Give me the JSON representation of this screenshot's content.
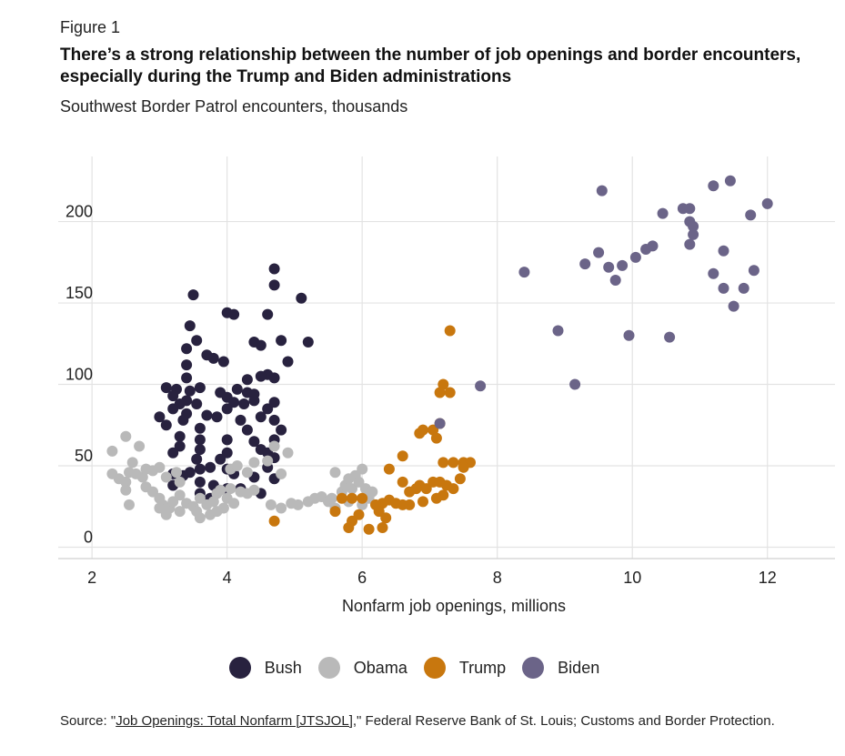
{
  "figure_label": "Figure 1",
  "title": "There’s a strong relationship between the number of job openings and border encounters, especially during the Trump and Biden administrations",
  "subtitle": "Southwest Border Patrol encounters, thousands",
  "source": {
    "prefix": "Source: \"",
    "link_text": "Job Openings: Total Nonfarm [JTSJOL]",
    "suffix": ",\" Federal Reserve Bank of St. Louis; Customs and Border Protection."
  },
  "chart_data": {
    "type": "scatter",
    "xlabel": "Nonfarm job openings, millions",
    "ylabel": "",
    "xlim": [
      1.5,
      13
    ],
    "ylim": [
      -7,
      240
    ],
    "x_ticks": [
      2,
      4,
      6,
      8,
      10,
      12
    ],
    "y_ticks": [
      0,
      50,
      100,
      150,
      200
    ],
    "grid": true,
    "legend_position": "bottom",
    "series": [
      {
        "name": "Bush",
        "color": "#28223f",
        "points": [
          [
            3.5,
            155
          ],
          [
            4.7,
            171
          ],
          [
            4.7,
            161
          ],
          [
            5.1,
            153
          ],
          [
            4.1,
            143
          ],
          [
            4,
            144
          ],
          [
            4.6,
            143
          ],
          [
            3.45,
            136
          ],
          [
            3.55,
            127
          ],
          [
            3.4,
            122
          ],
          [
            4.4,
            126
          ],
          [
            4.5,
            124
          ],
          [
            4.8,
            127
          ],
          [
            5.2,
            126
          ],
          [
            3.7,
            118
          ],
          [
            3.8,
            116
          ],
          [
            3.95,
            114
          ],
          [
            3.4,
            112
          ],
          [
            4.9,
            114
          ],
          [
            4.6,
            106
          ],
          [
            3.4,
            104
          ],
          [
            4.5,
            105
          ],
          [
            4.3,
            103
          ],
          [
            4.7,
            104
          ],
          [
            3.1,
            98
          ],
          [
            3.25,
            97
          ],
          [
            3.45,
            96
          ],
          [
            3.6,
            98
          ],
          [
            3.9,
            95
          ],
          [
            4.15,
            97
          ],
          [
            4.3,
            95
          ],
          [
            4.4,
            94
          ],
          [
            4,
            92
          ],
          [
            3.2,
            93
          ],
          [
            3.4,
            90
          ],
          [
            3.3,
            88
          ],
          [
            3.55,
            88
          ],
          [
            4.1,
            89
          ],
          [
            4.25,
            88
          ],
          [
            4.4,
            90
          ],
          [
            4.6,
            85
          ],
          [
            3.2,
            85
          ],
          [
            4.7,
            89
          ],
          [
            3.0,
            80
          ],
          [
            3.4,
            82
          ],
          [
            3.7,
            81
          ],
          [
            3.85,
            80
          ],
          [
            4.0,
            85
          ],
          [
            4.2,
            78
          ],
          [
            4.5,
            80
          ],
          [
            4.7,
            78
          ],
          [
            3.1,
            75
          ],
          [
            3.35,
            78
          ],
          [
            3.6,
            73
          ],
          [
            4.3,
            72
          ],
          [
            4.8,
            72
          ],
          [
            3.3,
            68
          ],
          [
            3.6,
            66
          ],
          [
            4.0,
            66
          ],
          [
            4.4,
            65
          ],
          [
            4.7,
            66
          ],
          [
            3.3,
            62
          ],
          [
            3.2,
            58
          ],
          [
            3.6,
            60
          ],
          [
            4.0,
            58
          ],
          [
            4.5,
            60
          ],
          [
            4.6,
            58
          ],
          [
            4.7,
            55
          ],
          [
            3.55,
            54
          ],
          [
            3.9,
            54
          ],
          [
            3.75,
            49
          ],
          [
            3.6,
            48
          ],
          [
            3.45,
            46
          ],
          [
            3.35,
            44
          ],
          [
            3.2,
            45
          ],
          [
            4.0,
            48
          ],
          [
            4.6,
            49
          ],
          [
            4.1,
            45
          ],
          [
            4.4,
            43
          ],
          [
            3.2,
            38
          ],
          [
            3.6,
            40
          ],
          [
            3.8,
            38
          ],
          [
            4.0,
            36
          ],
          [
            4.2,
            36
          ],
          [
            3.6,
            33
          ],
          [
            4.5,
            33
          ],
          [
            4.7,
            42
          ],
          [
            3.75,
            30
          ]
        ]
      },
      {
        "name": "Obama",
        "color": "#b9b9b9",
        "points": [
          [
            2.3,
            45
          ],
          [
            2.4,
            42
          ],
          [
            2.5,
            40
          ],
          [
            2.55,
            46
          ],
          [
            2.65,
            45
          ],
          [
            2.75,
            43
          ],
          [
            2.8,
            48
          ],
          [
            2.9,
            47
          ],
          [
            3.0,
            49
          ],
          [
            3.1,
            43
          ],
          [
            3.25,
            46
          ],
          [
            3.3,
            40
          ],
          [
            2.3,
            59
          ],
          [
            2.5,
            68
          ],
          [
            2.7,
            62
          ],
          [
            2.6,
            52
          ],
          [
            2.8,
            37
          ],
          [
            2.9,
            34
          ],
          [
            3.0,
            30
          ],
          [
            3.05,
            26
          ],
          [
            3.15,
            24
          ],
          [
            3.2,
            28
          ],
          [
            3.3,
            32
          ],
          [
            3.4,
            27
          ],
          [
            3.5,
            25
          ],
          [
            3.55,
            22
          ],
          [
            3.6,
            30
          ],
          [
            3.7,
            26
          ],
          [
            3.75,
            20
          ],
          [
            3.8,
            28
          ],
          [
            3.85,
            33
          ],
          [
            3.9,
            35
          ],
          [
            3.95,
            24
          ],
          [
            4.0,
            30
          ],
          [
            4.05,
            36
          ],
          [
            4.1,
            27
          ],
          [
            4.2,
            34
          ],
          [
            4.3,
            33
          ],
          [
            4.4,
            35
          ],
          [
            4.05,
            48
          ],
          [
            4.15,
            50
          ],
          [
            4.3,
            46
          ],
          [
            4.4,
            52
          ],
          [
            4.6,
            53
          ],
          [
            4.7,
            62
          ],
          [
            4.9,
            58
          ],
          [
            4.8,
            45
          ],
          [
            2.5,
            35
          ],
          [
            2.55,
            26
          ],
          [
            3.0,
            24
          ],
          [
            3.1,
            20
          ],
          [
            3.3,
            22
          ],
          [
            3.6,
            18
          ],
          [
            3.85,
            22
          ],
          [
            4.65,
            26
          ],
          [
            4.8,
            24
          ],
          [
            4.95,
            27
          ],
          [
            5.05,
            26
          ],
          [
            5.2,
            28
          ],
          [
            5.3,
            30
          ],
          [
            5.4,
            31
          ],
          [
            5.5,
            28
          ],
          [
            5.55,
            30
          ],
          [
            5.6,
            46
          ],
          [
            5.7,
            34
          ],
          [
            5.75,
            38
          ],
          [
            5.8,
            42
          ],
          [
            5.85,
            36
          ],
          [
            5.9,
            44
          ],
          [
            5.95,
            40
          ],
          [
            6.0,
            48
          ],
          [
            6.05,
            36
          ],
          [
            6.1,
            30
          ],
          [
            6.15,
            34
          ],
          [
            6.0,
            26
          ],
          [
            5.8,
            28
          ],
          [
            5.6,
            24
          ]
        ]
      },
      {
        "name": "Trump",
        "color": "#c8770e",
        "points": [
          [
            7.3,
            133
          ],
          [
            7.2,
            100
          ],
          [
            7.3,
            95
          ],
          [
            7.15,
            95
          ],
          [
            6.85,
            70
          ],
          [
            6.9,
            72
          ],
          [
            7.05,
            72
          ],
          [
            7.1,
            67
          ],
          [
            7.15,
            76
          ],
          [
            6.6,
            56
          ],
          [
            6.4,
            48
          ],
          [
            7.2,
            52
          ],
          [
            7.35,
            52
          ],
          [
            7.5,
            52
          ],
          [
            7.6,
            52
          ],
          [
            7.5,
            49
          ],
          [
            6.6,
            40
          ],
          [
            6.85,
            38
          ],
          [
            6.95,
            36
          ],
          [
            7.05,
            40
          ],
          [
            7.15,
            40
          ],
          [
            7.25,
            38
          ],
          [
            7.35,
            36
          ],
          [
            7.45,
            42
          ],
          [
            6.8,
            36
          ],
          [
            6.7,
            34
          ],
          [
            7.2,
            32
          ],
          [
            6.4,
            29
          ],
          [
            6.3,
            27
          ],
          [
            6.5,
            27
          ],
          [
            6.6,
            26
          ],
          [
            6.7,
            26
          ],
          [
            6.9,
            28
          ],
          [
            7.1,
            30
          ],
          [
            6.2,
            26
          ],
          [
            6.25,
            22
          ],
          [
            6.35,
            18
          ],
          [
            6.0,
            30
          ],
          [
            5.85,
            30
          ],
          [
            5.7,
            30
          ],
          [
            5.6,
            22
          ],
          [
            5.85,
            16
          ],
          [
            5.95,
            20
          ],
          [
            5.8,
            12
          ],
          [
            6.1,
            11
          ],
          [
            6.3,
            12
          ],
          [
            4.7,
            16
          ]
        ]
      },
      {
        "name": "Biden",
        "color": "#6b6488",
        "points": [
          [
            7.75,
            99
          ],
          [
            7.15,
            76
          ],
          [
            8.4,
            169
          ],
          [
            8.9,
            133
          ],
          [
            9.15,
            100
          ],
          [
            9.3,
            174
          ],
          [
            9.5,
            181
          ],
          [
            9.55,
            219
          ],
          [
            9.65,
            172
          ],
          [
            9.75,
            164
          ],
          [
            9.85,
            173
          ],
          [
            9.95,
            130
          ],
          [
            10.05,
            178
          ],
          [
            10.2,
            183
          ],
          [
            10.3,
            185
          ],
          [
            10.45,
            205
          ],
          [
            10.55,
            129
          ],
          [
            10.75,
            208
          ],
          [
            10.85,
            208
          ],
          [
            10.85,
            200
          ],
          [
            10.9,
            197
          ],
          [
            10.9,
            192
          ],
          [
            10.85,
            186
          ],
          [
            11.2,
            222
          ],
          [
            11.2,
            168
          ],
          [
            11.35,
            182
          ],
          [
            11.35,
            159
          ],
          [
            11.45,
            225
          ],
          [
            11.5,
            148
          ],
          [
            11.65,
            159
          ],
          [
            11.75,
            204
          ],
          [
            11.8,
            170
          ],
          [
            12.0,
            211
          ]
        ]
      }
    ]
  }
}
